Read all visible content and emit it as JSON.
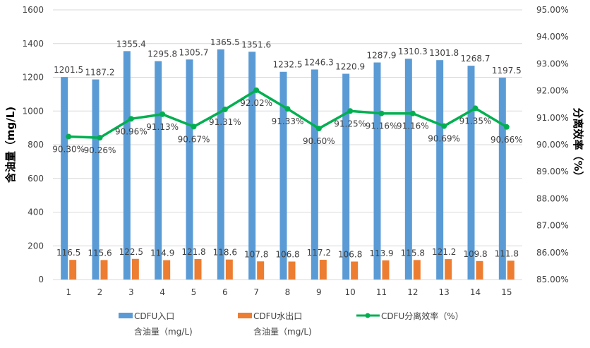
{
  "chart_data": {
    "type": "bar+line",
    "categories": [
      "1",
      "2",
      "3",
      "4",
      "5",
      "6",
      "7",
      "8",
      "9",
      "10",
      "11",
      "12",
      "13",
      "14",
      "15"
    ],
    "series": [
      {
        "name": "CDFU入口含油量（mg/L)",
        "axis": "left",
        "type": "bar",
        "color": "#5B9BD5",
        "values": [
          1201.5,
          1187.2,
          1355.4,
          1295.8,
          1305.7,
          1365.5,
          1351.6,
          1232.5,
          1246.3,
          1220.9,
          1287.9,
          1310.3,
          1301.8,
          1268.7,
          1197.5
        ]
      },
      {
        "name": "CDFU水出口含油量（mg/L)",
        "axis": "left",
        "type": "bar",
        "color": "#ED7D31",
        "values": [
          116.5,
          115.6,
          122.5,
          114.9,
          121.8,
          118.6,
          107.8,
          106.8,
          117.2,
          106.8,
          113.9,
          115.8,
          121.2,
          109.8,
          111.8
        ]
      },
      {
        "name": "CDFU分离效率（%）",
        "axis": "right",
        "type": "line",
        "color": "#00B050",
        "values": [
          90.3,
          90.26,
          90.96,
          91.13,
          90.67,
          91.31,
          92.02,
          91.33,
          90.6,
          91.25,
          91.16,
          91.16,
          90.69,
          91.35,
          90.66
        ]
      }
    ],
    "ylabel": "含油量（mg/L)",
    "y2label": "分离效率（%）",
    "ylim": [
      0,
      1600
    ],
    "y2lim": [
      85,
      95
    ],
    "yticks": [
      "0",
      "200",
      "400",
      "600",
      "800",
      "1000",
      "1200",
      "1400",
      "1600"
    ],
    "y2ticks": [
      "85.00%",
      "86.00%",
      "87.00%",
      "88.00%",
      "89.00%",
      "90.00%",
      "91.00%",
      "92.00%",
      "93.00%",
      "94.00%",
      "95.00%"
    ],
    "grid": true,
    "legend": {
      "position": "bottom",
      "items": [
        {
          "line1": "CDFU入口",
          "line2": "含油量（mg/L)"
        },
        {
          "line1": "CDFU水出口",
          "line2": "含油量（mg/L)"
        },
        {
          "line1": "CDFU分离效率（%）",
          "line2": ""
        }
      ]
    }
  }
}
